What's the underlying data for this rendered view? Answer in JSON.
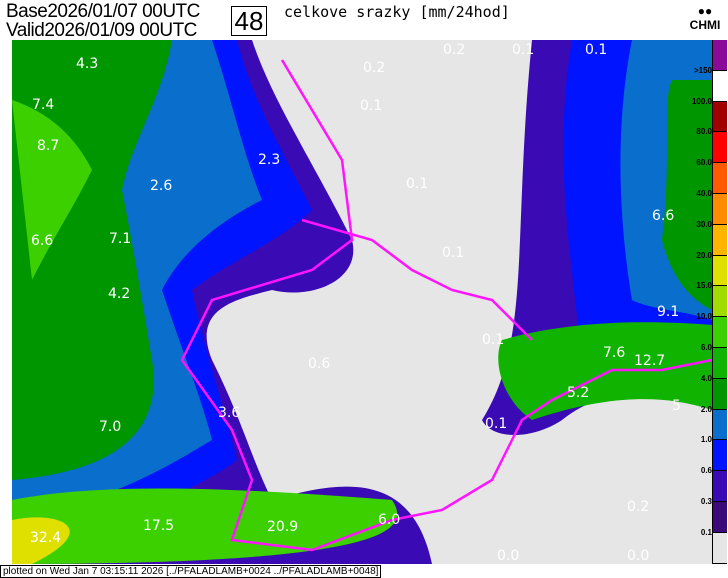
{
  "header": {
    "base_label": "Base",
    "base_value": "2026/01/07 00UTC",
    "valid_label": "Valid",
    "valid_value": "2026/01/09 00UTC",
    "forecast_hour": "48",
    "title": "celkove srazky [mm/24hod]",
    "logo": "CHMI"
  },
  "legend": {
    "labels": [
      ">150",
      "100.0",
      "80.0",
      "60.0",
      "40.0",
      "30.0",
      "20.0",
      "15.0",
      "10.0",
      "6.0",
      "4.0",
      "2.0",
      "1.0",
      "0.6",
      "0.3",
      "0.1"
    ],
    "colors": [
      "#8a0a9a",
      "#ffffff",
      "#a00000",
      "#ff0000",
      "#ff5a00",
      "#ff8c00",
      "#ffb400",
      "#e0e000",
      "#a0dc00",
      "#3cd000",
      "#10b400",
      "#009600",
      "#0a6ecc",
      "#0014ff",
      "#3a0ab4",
      "#3c0a78",
      "#e6e6e6"
    ]
  },
  "map_labels": [
    {
      "text": "4.3"
    },
    {
      "text": "7.4"
    },
    {
      "text": "8.7"
    },
    {
      "text": "2.3"
    },
    {
      "text": "2.6"
    },
    {
      "text": "0.2"
    },
    {
      "text": "0.1"
    },
    {
      "text": "0.1"
    },
    {
      "text": "0.1"
    },
    {
      "text": "0.1"
    },
    {
      "text": "0.1"
    },
    {
      "text": "6.6"
    },
    {
      "text": "6.6"
    },
    {
      "text": "7.1"
    },
    {
      "text": "4.2"
    },
    {
      "text": "0.1"
    },
    {
      "text": "9.1"
    },
    {
      "text": "0.6"
    },
    {
      "text": "7.6"
    },
    {
      "text": "12.7"
    },
    {
      "text": "5.2"
    },
    {
      "text": "5"
    },
    {
      "text": "3.6"
    },
    {
      "text": "7.0"
    },
    {
      "text": "0.1"
    },
    {
      "text": "17.5"
    },
    {
      "text": "20.9"
    },
    {
      "text": "6.0"
    },
    {
      "text": "0.2"
    },
    {
      "text": "32.4"
    },
    {
      "text": "0.0"
    },
    {
      "text": "0.0"
    },
    {
      "text": "0.2"
    }
  ],
  "footer": "plotted on Wed Jan  7 03:15:11 2026 [../PFALADLAMB+0024 ../PFALADLAMB+0048]"
}
